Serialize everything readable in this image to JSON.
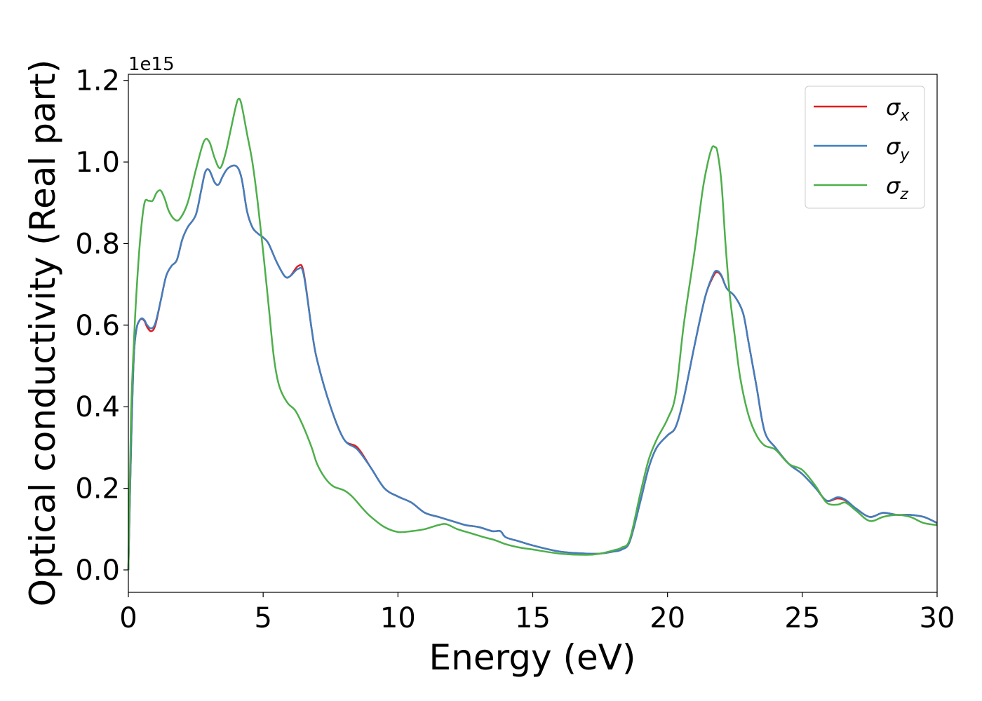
{
  "chart_data": {
    "type": "line",
    "xlabel": "Energy (eV)",
    "ylabel": "Optical conductivity (Real part)",
    "y_offset_label": "1e15",
    "xlim": [
      0,
      30
    ],
    "ylim": [
      -0.055,
      1.215
    ],
    "xticks": [
      0,
      5,
      10,
      15,
      20,
      25,
      30
    ],
    "yticks": [
      0.0,
      0.2,
      0.4,
      0.6,
      0.8,
      1.0,
      1.2
    ],
    "xtick_labels": [
      "0",
      "5",
      "10",
      "15",
      "20",
      "25",
      "30"
    ],
    "ytick_labels": [
      "0.0",
      "0.2",
      "0.4",
      "0.6",
      "0.8",
      "1.0",
      "1.2"
    ],
    "grid": false,
    "legend_position": "top-right",
    "series": [
      {
        "name": "σ_x",
        "legend_base": "σ",
        "legend_sub": "x",
        "color": "#e41a1c",
        "x": [
          0,
          0.1,
          0.2,
          0.3,
          0.4,
          0.5,
          0.6,
          0.7,
          0.85,
          1.0,
          1.2,
          1.4,
          1.6,
          1.8,
          2.0,
          2.2,
          2.5,
          2.7,
          2.85,
          3.0,
          3.2,
          3.35,
          3.5,
          3.7,
          4.0,
          4.2,
          4.4,
          4.6,
          4.8,
          5.0,
          5.2,
          5.5,
          5.8,
          6.0,
          6.3,
          6.5,
          6.8,
          7.0,
          7.5,
          8.0,
          8.5,
          9.0,
          9.5,
          10.0,
          10.5,
          11.0,
          11.5,
          12.0,
          12.5,
          13.0,
          13.5,
          13.8,
          14.0,
          14.5,
          15.0,
          16.0,
          17.0,
          17.5,
          18.0,
          18.3,
          18.6,
          19.0,
          19.3,
          19.6,
          20.0,
          20.3,
          20.6,
          21.0,
          21.4,
          21.7,
          21.85,
          22.0,
          22.2,
          22.5,
          22.8,
          23.0,
          23.3,
          23.6,
          24.0,
          24.5,
          25.0,
          25.5,
          25.9,
          26.3,
          26.6,
          27.0,
          27.5,
          28.0,
          28.5,
          29.0,
          29.5,
          30.0
        ],
        "y": [
          0.0,
          0.3,
          0.52,
          0.59,
          0.61,
          0.615,
          0.61,
          0.595,
          0.585,
          0.6,
          0.66,
          0.72,
          0.745,
          0.76,
          0.81,
          0.84,
          0.87,
          0.93,
          0.975,
          0.98,
          0.95,
          0.945,
          0.965,
          0.985,
          0.99,
          0.96,
          0.88,
          0.84,
          0.825,
          0.815,
          0.8,
          0.755,
          0.72,
          0.72,
          0.745,
          0.73,
          0.59,
          0.515,
          0.4,
          0.32,
          0.3,
          0.25,
          0.2,
          0.18,
          0.165,
          0.14,
          0.13,
          0.12,
          0.11,
          0.105,
          0.095,
          0.095,
          0.08,
          0.07,
          0.06,
          0.045,
          0.04,
          0.04,
          0.045,
          0.05,
          0.07,
          0.17,
          0.25,
          0.3,
          0.33,
          0.35,
          0.42,
          0.55,
          0.67,
          0.72,
          0.73,
          0.72,
          0.69,
          0.67,
          0.63,
          0.56,
          0.45,
          0.34,
          0.3,
          0.26,
          0.235,
          0.2,
          0.17,
          0.175,
          0.17,
          0.15,
          0.13,
          0.14,
          0.135,
          0.135,
          0.13,
          0.115
        ]
      },
      {
        "name": "σ_y",
        "legend_base": "σ",
        "legend_sub": "y",
        "color": "#3f7fbf",
        "x": [
          0,
          0.1,
          0.2,
          0.3,
          0.4,
          0.5,
          0.6,
          0.7,
          0.85,
          1.0,
          1.2,
          1.4,
          1.6,
          1.8,
          2.0,
          2.2,
          2.5,
          2.7,
          2.85,
          3.0,
          3.2,
          3.35,
          3.5,
          3.7,
          4.0,
          4.2,
          4.4,
          4.6,
          4.8,
          5.0,
          5.2,
          5.5,
          5.8,
          6.0,
          6.3,
          6.5,
          6.8,
          7.0,
          7.5,
          8.0,
          8.5,
          9.0,
          9.5,
          10.0,
          10.5,
          11.0,
          11.5,
          12.0,
          12.5,
          13.0,
          13.5,
          13.8,
          14.0,
          14.5,
          15.0,
          16.0,
          17.0,
          17.5,
          18.0,
          18.3,
          18.6,
          19.0,
          19.3,
          19.6,
          20.0,
          20.3,
          20.6,
          21.0,
          21.4,
          21.7,
          21.85,
          22.0,
          22.2,
          22.5,
          22.8,
          23.0,
          23.3,
          23.6,
          24.0,
          24.5,
          25.0,
          25.5,
          25.9,
          26.3,
          26.6,
          27.0,
          27.5,
          28.0,
          28.5,
          29.0,
          29.5,
          30.0
        ],
        "y": [
          0.0,
          0.3,
          0.52,
          0.59,
          0.61,
          0.617,
          0.612,
          0.6,
          0.592,
          0.605,
          0.66,
          0.72,
          0.745,
          0.76,
          0.81,
          0.84,
          0.87,
          0.93,
          0.975,
          0.98,
          0.95,
          0.945,
          0.965,
          0.985,
          0.99,
          0.96,
          0.88,
          0.84,
          0.825,
          0.815,
          0.8,
          0.755,
          0.72,
          0.72,
          0.738,
          0.725,
          0.59,
          0.515,
          0.4,
          0.32,
          0.295,
          0.25,
          0.2,
          0.18,
          0.165,
          0.14,
          0.13,
          0.12,
          0.11,
          0.105,
          0.095,
          0.095,
          0.08,
          0.07,
          0.06,
          0.045,
          0.04,
          0.04,
          0.045,
          0.05,
          0.07,
          0.17,
          0.25,
          0.3,
          0.33,
          0.35,
          0.42,
          0.55,
          0.67,
          0.725,
          0.733,
          0.722,
          0.69,
          0.67,
          0.63,
          0.56,
          0.45,
          0.34,
          0.3,
          0.26,
          0.235,
          0.2,
          0.17,
          0.178,
          0.172,
          0.15,
          0.13,
          0.14,
          0.135,
          0.135,
          0.13,
          0.115
        ]
      },
      {
        "name": "σ_z",
        "legend_base": "σ",
        "legend_sub": "z",
        "color": "#4daf4a",
        "x": [
          0,
          0.1,
          0.2,
          0.3,
          0.45,
          0.6,
          0.75,
          0.9,
          1.05,
          1.2,
          1.35,
          1.5,
          1.7,
          1.9,
          2.2,
          2.5,
          2.8,
          3.0,
          3.2,
          3.4,
          3.6,
          3.8,
          4.0,
          4.1,
          4.2,
          4.4,
          4.6,
          4.8,
          5.0,
          5.2,
          5.4,
          5.6,
          5.9,
          6.2,
          6.5,
          6.8,
          7.0,
          7.3,
          7.6,
          8.0,
          8.3,
          8.7,
          9.0,
          9.5,
          10.0,
          10.5,
          11.0,
          11.5,
          11.8,
          12.2,
          12.7,
          13.2,
          13.6,
          14.0,
          14.5,
          15.0,
          16.0,
          17.0,
          17.5,
          18.0,
          18.3,
          18.6,
          19.0,
          19.3,
          19.6,
          20.0,
          20.3,
          20.6,
          21.0,
          21.3,
          21.5,
          21.65,
          21.75,
          21.85,
          22.0,
          22.15,
          22.3,
          22.5,
          22.7,
          23.0,
          23.3,
          23.6,
          24.0,
          24.5,
          25.0,
          25.5,
          25.9,
          26.3,
          26.6,
          27.0,
          27.5,
          28.0,
          28.5,
          29.0,
          29.5,
          30.0
        ],
        "y": [
          0.0,
          0.38,
          0.55,
          0.68,
          0.82,
          0.9,
          0.905,
          0.905,
          0.925,
          0.93,
          0.91,
          0.88,
          0.86,
          0.86,
          0.9,
          0.98,
          1.05,
          1.05,
          1.01,
          0.985,
          1.02,
          1.08,
          1.14,
          1.155,
          1.14,
          1.07,
          1.0,
          0.9,
          0.78,
          0.65,
          0.52,
          0.45,
          0.41,
          0.39,
          0.35,
          0.3,
          0.26,
          0.225,
          0.205,
          0.195,
          0.18,
          0.15,
          0.13,
          0.105,
          0.093,
          0.095,
          0.1,
          0.11,
          0.112,
          0.1,
          0.09,
          0.08,
          0.073,
          0.063,
          0.055,
          0.05,
          0.04,
          0.037,
          0.04,
          0.048,
          0.055,
          0.075,
          0.19,
          0.27,
          0.32,
          0.37,
          0.43,
          0.6,
          0.78,
          0.93,
          1.0,
          1.035,
          1.037,
          1.025,
          0.95,
          0.8,
          0.68,
          0.57,
          0.47,
          0.38,
          0.33,
          0.305,
          0.295,
          0.26,
          0.245,
          0.205,
          0.165,
          0.16,
          0.165,
          0.145,
          0.12,
          0.13,
          0.135,
          0.13,
          0.115,
          0.11
        ]
      }
    ]
  }
}
